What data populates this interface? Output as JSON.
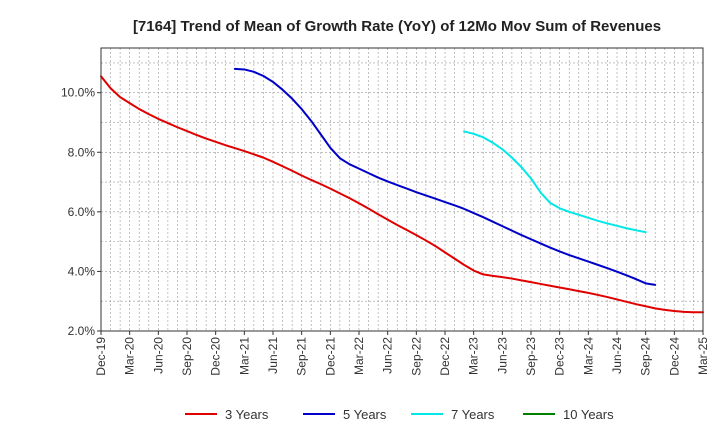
{
  "chart_data": {
    "type": "line",
    "title": "[7164]  Trend of Mean of Growth Rate (YoY) of 12Mo Mov Sum of Revenues",
    "xlabel": "",
    "ylabel": "",
    "ylim": [
      2.0,
      11.5
    ],
    "yticks": [
      2.0,
      4.0,
      6.0,
      8.0,
      10.0
    ],
    "ytick_labels": [
      "2.0%",
      "4.0%",
      "6.0%",
      "8.0%",
      "10.0%"
    ],
    "x_start": "2019-12",
    "x_end": "2025-03",
    "xtick_labels": [
      "Dec-19",
      "Mar-20",
      "Jun-20",
      "Sep-20",
      "Dec-20",
      "Mar-21",
      "Jun-21",
      "Sep-21",
      "Dec-21",
      "Mar-22",
      "Jun-22",
      "Sep-22",
      "Dec-22",
      "Mar-23",
      "Jun-23",
      "Sep-23",
      "Dec-23",
      "Mar-24",
      "Jun-24",
      "Sep-24",
      "Dec-24",
      "Mar-25"
    ],
    "grid": true,
    "legend_position": "bottom",
    "series": [
      {
        "name": "3 Years",
        "color": "#e00000",
        "start_month_index": 0,
        "values": [
          10.55,
          10.15,
          9.85,
          9.65,
          9.45,
          9.28,
          9.12,
          8.98,
          8.84,
          8.71,
          8.58,
          8.46,
          8.35,
          8.24,
          8.14,
          8.04,
          7.93,
          7.82,
          7.68,
          7.53,
          7.38,
          7.22,
          7.07,
          6.93,
          6.78,
          6.62,
          6.46,
          6.29,
          6.11,
          5.92,
          5.74,
          5.56,
          5.39,
          5.22,
          5.04,
          4.85,
          4.64,
          4.43,
          4.22,
          4.03,
          3.9,
          3.85,
          3.81,
          3.76,
          3.7,
          3.64,
          3.58,
          3.52,
          3.46,
          3.4,
          3.34,
          3.28,
          3.21,
          3.14,
          3.06,
          2.98,
          2.9,
          2.83,
          2.76,
          2.71,
          2.67,
          2.64,
          2.63,
          2.63
        ]
      },
      {
        "name": "5 Years",
        "color": "#0000c8",
        "start_month_index": 14,
        "values": [
          10.8,
          10.78,
          10.7,
          10.56,
          10.36,
          10.1,
          9.8,
          9.45,
          9.05,
          8.6,
          8.15,
          7.8,
          7.6,
          7.45,
          7.3,
          7.15,
          7.02,
          6.9,
          6.78,
          6.66,
          6.55,
          6.44,
          6.33,
          6.22,
          6.1,
          5.96,
          5.82,
          5.67,
          5.52,
          5.37,
          5.22,
          5.08,
          4.94,
          4.8,
          4.67,
          4.55,
          4.44,
          4.33,
          4.22,
          4.11,
          3.99,
          3.87,
          3.74,
          3.6,
          3.55
        ]
      },
      {
        "name": "7 Years",
        "color": "#00e8e8",
        "start_month_index": 38,
        "values": [
          8.7,
          8.62,
          8.5,
          8.32,
          8.1,
          7.82,
          7.5,
          7.12,
          6.65,
          6.3,
          6.12,
          6.0,
          5.9,
          5.8,
          5.7,
          5.61,
          5.53,
          5.45,
          5.38,
          5.32
        ]
      },
      {
        "name": "10 Years",
        "color": "#008000",
        "start_month_index": 0,
        "values": []
      }
    ]
  }
}
